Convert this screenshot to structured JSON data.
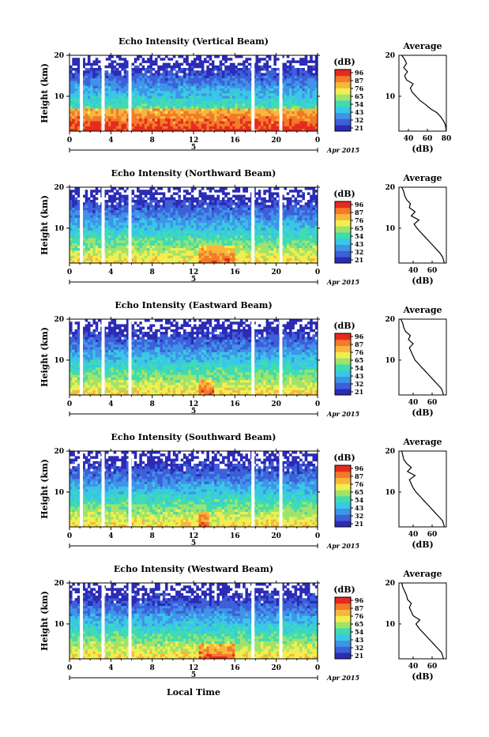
{
  "figure": {
    "xlabel": "Local Time",
    "ylabel": "Height (km)",
    "date_label": "Apr 2015",
    "day_label": "5",
    "colorbar_unit": "(dB)",
    "avg_title": "Average",
    "avg_xlabel": "(dB)"
  },
  "chart_data": [
    {
      "type": "heatmap",
      "title": "Echo Intensity (Vertical Beam)",
      "x_ticks": [
        "0",
        "4",
        "8",
        "12",
        "16",
        "20",
        "0"
      ],
      "xlim": [
        0,
        24
      ],
      "y_ticks": [
        "20",
        "10"
      ],
      "ylim": [
        1.5,
        20
      ],
      "colorbar_ticks": [
        "96",
        "87",
        "76",
        "65",
        "54",
        "43",
        "32",
        "21"
      ],
      "data_gaps_hours": [
        [
          1.0,
          1.3
        ],
        [
          3.1,
          3.4
        ],
        [
          5.7,
          6.0
        ],
        [
          17.6,
          17.9
        ],
        [
          20.3,
          20.6
        ]
      ],
      "strong_echo_region": {
        "hours": [
          0,
          24
        ],
        "height_km": [
          1.5,
          7
        ]
      },
      "average_profile": {
        "x_ticks": [
          "40",
          "60",
          "80"
        ],
        "xlim": [
          30,
          80
        ],
        "ylim": [
          1.5,
          20
        ],
        "height_km": [
          1.5,
          3,
          4,
          5,
          6,
          7,
          8,
          9,
          10,
          11,
          12,
          13,
          14,
          15,
          16,
          17,
          18,
          19,
          20
        ],
        "values_db": [
          80,
          79,
          77,
          74,
          70,
          63,
          58,
          52,
          48,
          44,
          42,
          45,
          38,
          36,
          39,
          35,
          38,
          36,
          33
        ]
      }
    },
    {
      "type": "heatmap",
      "title": "Echo Intensity (Northward Beam)",
      "x_ticks": [
        "0",
        "4",
        "8",
        "12",
        "16",
        "20",
        "0"
      ],
      "xlim": [
        0,
        24
      ],
      "y_ticks": [
        "20",
        "10"
      ],
      "ylim": [
        1.5,
        20
      ],
      "colorbar_ticks": [
        "96",
        "87",
        "76",
        "65",
        "54",
        "43",
        "32",
        "21"
      ],
      "data_gaps_hours": [
        [
          1.0,
          1.3
        ],
        [
          3.1,
          3.4
        ],
        [
          5.7,
          6.0
        ],
        [
          17.6,
          17.9
        ],
        [
          20.3,
          20.6
        ]
      ],
      "strong_echo_region": {
        "hours": [
          12.5,
          16
        ],
        "height_km": [
          1.5,
          6
        ]
      },
      "average_profile": {
        "x_ticks": [
          "40",
          "60"
        ],
        "xlim": [
          25,
          75
        ],
        "ylim": [
          1.5,
          20
        ],
        "height_km": [
          1.5,
          3,
          4,
          5,
          6,
          7,
          8,
          9,
          10,
          11,
          12,
          13,
          14,
          15,
          16,
          17,
          18,
          19,
          20
        ],
        "values_db": [
          73,
          71,
          68,
          64,
          60,
          56,
          52,
          48,
          44,
          41,
          46,
          38,
          42,
          36,
          37,
          33,
          31,
          30,
          28
        ]
      }
    },
    {
      "type": "heatmap",
      "title": "Echo Intensity (Eastward Beam)",
      "x_ticks": [
        "0",
        "4",
        "8",
        "12",
        "16",
        "20",
        "0"
      ],
      "xlim": [
        0,
        24
      ],
      "y_ticks": [
        "20",
        "10"
      ],
      "ylim": [
        1.5,
        20
      ],
      "colorbar_ticks": [
        "96",
        "87",
        "76",
        "65",
        "54",
        "43",
        "32",
        "21"
      ],
      "data_gaps_hours": [
        [
          1.0,
          1.3
        ],
        [
          3.1,
          3.4
        ],
        [
          5.7,
          6.0
        ],
        [
          17.6,
          17.9
        ],
        [
          20.3,
          20.6
        ]
      ],
      "strong_echo_region": {
        "hours": [
          12.5,
          14
        ],
        "height_km": [
          1.5,
          5
        ]
      },
      "average_profile": {
        "x_ticks": [
          "40",
          "60"
        ],
        "xlim": [
          25,
          75
        ],
        "ylim": [
          1.5,
          20
        ],
        "height_km": [
          1.5,
          3,
          4,
          5,
          6,
          7,
          8,
          9,
          10,
          11,
          12,
          13,
          14,
          15,
          16,
          17,
          18,
          19,
          20
        ],
        "values_db": [
          72,
          70,
          66,
          62,
          58,
          54,
          50,
          46,
          42,
          40,
          38,
          36,
          40,
          35,
          37,
          32,
          30,
          29,
          27
        ]
      }
    },
    {
      "type": "heatmap",
      "title": "Echo Intensity (Southward Beam)",
      "x_ticks": [
        "0",
        "4",
        "8",
        "12",
        "16",
        "20",
        "0"
      ],
      "xlim": [
        0,
        24
      ],
      "y_ticks": [
        "20",
        "10"
      ],
      "ylim": [
        1.5,
        20
      ],
      "colorbar_ticks": [
        "96",
        "87",
        "76",
        "65",
        "54",
        "43",
        "32",
        "21"
      ],
      "data_gaps_hours": [
        [
          1.0,
          1.3
        ],
        [
          3.1,
          3.4
        ],
        [
          5.7,
          6.0
        ],
        [
          17.6,
          17.9
        ],
        [
          20.3,
          20.6
        ]
      ],
      "strong_echo_region": {
        "hours": [
          12.5,
          13.5
        ],
        "height_km": [
          1.5,
          5
        ]
      },
      "average_profile": {
        "x_ticks": [
          "40",
          "60"
        ],
        "xlim": [
          25,
          75
        ],
        "ylim": [
          1.5,
          20
        ],
        "height_km": [
          1.5,
          3,
          4,
          5,
          6,
          7,
          8,
          9,
          10,
          11,
          12,
          13,
          14,
          15,
          16,
          17,
          18,
          19,
          20
        ],
        "values_db": [
          73,
          71,
          67,
          63,
          59,
          55,
          51,
          47,
          43,
          40,
          38,
          36,
          42,
          34,
          38,
          33,
          30,
          29,
          28
        ]
      }
    },
    {
      "type": "heatmap",
      "title": "Echo Intensity (Westward Beam)",
      "x_ticks": [
        "0",
        "4",
        "8",
        "12",
        "16",
        "20",
        "0"
      ],
      "xlim": [
        0,
        24
      ],
      "y_ticks": [
        "20",
        "10"
      ],
      "ylim": [
        1.5,
        20
      ],
      "colorbar_ticks": [
        "96",
        "87",
        "76",
        "65",
        "54",
        "43",
        "32",
        "21"
      ],
      "data_gaps_hours": [
        [
          1.0,
          1.3
        ],
        [
          3.1,
          3.4
        ],
        [
          5.7,
          6.0
        ],
        [
          17.6,
          17.9
        ],
        [
          20.3,
          20.6
        ]
      ],
      "strong_echo_region": {
        "hours": [
          12.5,
          16
        ],
        "height_km": [
          1.5,
          5
        ]
      },
      "average_profile": {
        "x_ticks": [
          "40",
          "60"
        ],
        "xlim": [
          25,
          75
        ],
        "ylim": [
          1.5,
          20
        ],
        "height_km": [
          1.5,
          3,
          4,
          5,
          6,
          7,
          8,
          9,
          10,
          11,
          12,
          13,
          14,
          15,
          16,
          17,
          18,
          19,
          20
        ],
        "values_db": [
          72,
          70,
          66,
          62,
          58,
          54,
          50,
          46,
          43,
          47,
          40,
          38,
          36,
          38,
          34,
          33,
          31,
          29,
          28
        ]
      }
    }
  ],
  "colors": {
    "scale": [
      "#2b2bb5",
      "#3d5fd9",
      "#3f93e8",
      "#38c7e6",
      "#3fdcb0",
      "#9fe36a",
      "#f2ee50",
      "#f7b63c",
      "#f27a28",
      "#e62a1e"
    ]
  }
}
